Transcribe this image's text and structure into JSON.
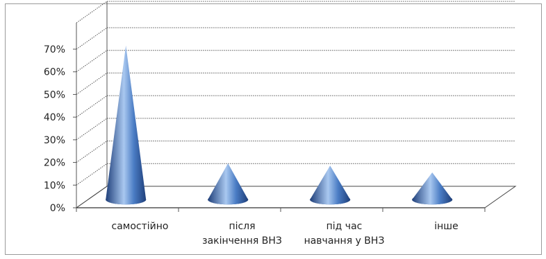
{
  "chart_data": {
    "type": "bar",
    "subtype": "3d-cone",
    "title": "",
    "xlabel": "",
    "ylabel": "",
    "categories": [
      [
        "самостійно"
      ],
      [
        "після",
        "закінчення ВНЗ"
      ],
      [
        "під час",
        "навчання у ВНЗ"
      ],
      [
        "інше"
      ]
    ],
    "values": [
      68,
      16,
      15,
      12
    ],
    "ylim": [
      0,
      70
    ],
    "ytick_labels": [
      "0%",
      "10%",
      "20%",
      "30%",
      "40%",
      "50%",
      "60%",
      "70%"
    ],
    "grid": true,
    "legend": "none",
    "colors": {
      "cone_dark": "#1f3f7a",
      "cone_mid": "#4a7cc4",
      "cone_light": "#a9c8f0",
      "grid": "#555555"
    }
  }
}
